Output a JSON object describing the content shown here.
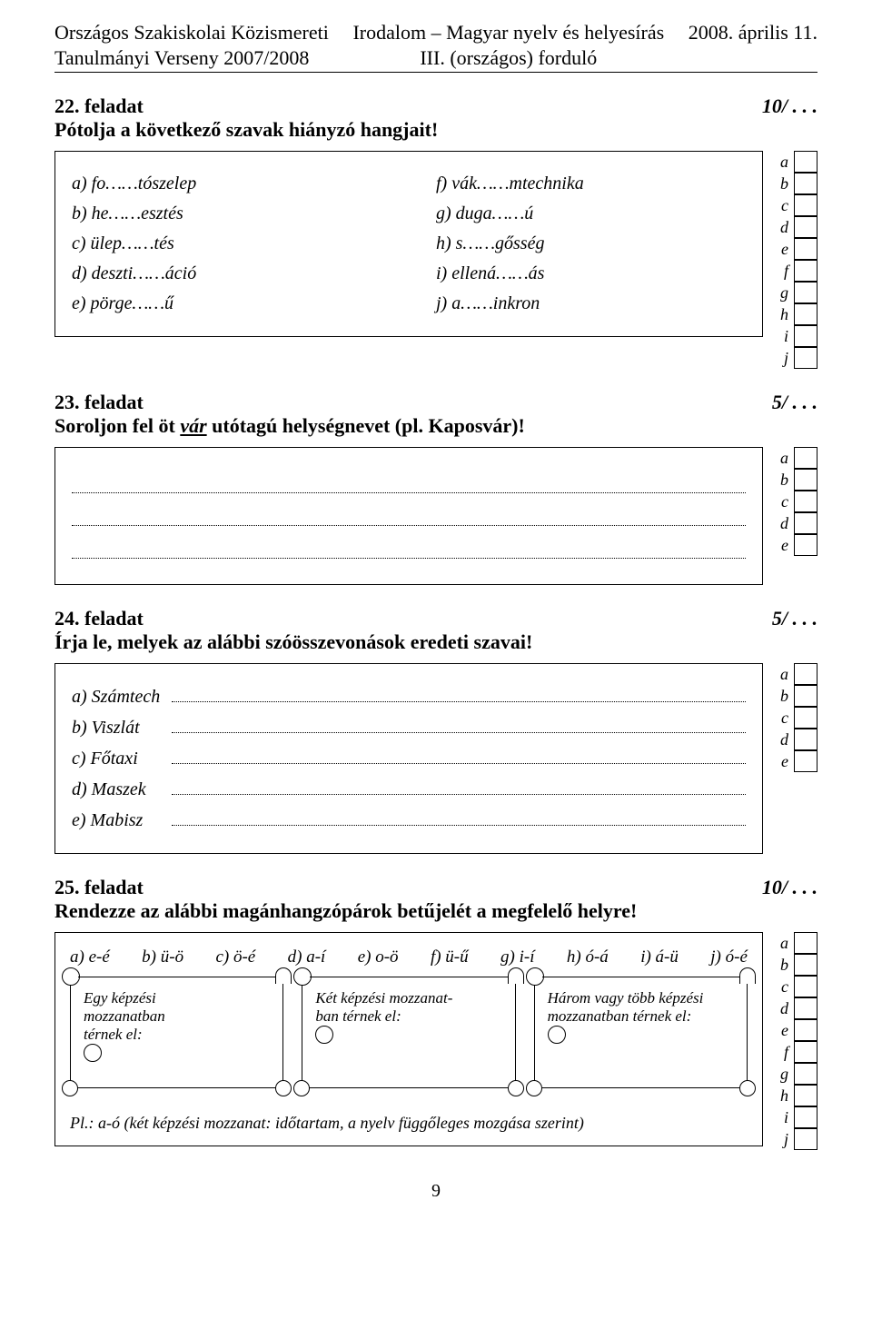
{
  "header": {
    "left_line1": "Országos Szakiskolai Közismereti",
    "left_line2": "Tanulmányi Verseny 2007/2008",
    "center_line1": "Irodalom – Magyar nyelv és helyesírás",
    "center_line2": "III. (országos) forduló",
    "right_line1": "",
    "right_line2": "2008. április 11."
  },
  "task22": {
    "title": "22. feladat",
    "score": "10/ . . .",
    "desc": "Pótolja a következő szavak hiányzó hangjait!",
    "left_items": {
      "a": "a) fo……tószelep",
      "b": "b) he……esztés",
      "c": "c) ülep……tés",
      "d": "d) deszti……áció",
      "e": "e) pörge……ű"
    },
    "right_items": {
      "f": "f) vák……mtechnika",
      "g": "g) duga……ú",
      "h": "h) s……gősség",
      "i": "i) ellená……ás",
      "j": "j) a……inkron"
    },
    "grid_labels": [
      "a",
      "b",
      "c",
      "d",
      "e",
      "f",
      "g",
      "h",
      "i",
      "j"
    ]
  },
  "task23": {
    "title": "23. feladat",
    "score": "5/ . . .",
    "desc_pre": "Soroljon fel öt ",
    "desc_u": "vár",
    "desc_post": " utótagú helységnevet (pl. Kaposvár)!",
    "grid_labels": [
      "a",
      "b",
      "c",
      "d",
      "e"
    ]
  },
  "task24": {
    "title": "24. feladat",
    "score": "5/ . . .",
    "desc": "Írja le, melyek az alábbi szóösszevonások eredeti szavai!",
    "rows": [
      {
        "label": "a) Számtech"
      },
      {
        "label": "b) Viszlát"
      },
      {
        "label": "c) Főtaxi"
      },
      {
        "label": "d) Maszek"
      },
      {
        "label": "e) Mabisz"
      }
    ],
    "grid_labels": [
      "a",
      "b",
      "c",
      "d",
      "e"
    ]
  },
  "task25": {
    "title": "25. feladat",
    "score": "10/ . . .",
    "desc": "Rendezze az alábbi magánhangzópárok betűjelét a megfelelő helyre!",
    "pairs": [
      "a) e-é",
      "b) ü-ö",
      "c) ö-é",
      "d) a-í",
      "e) o-ö",
      "f) ü-ű",
      "g) i-í",
      "h) ó-á",
      "i) á-ü",
      "j) ó-é"
    ],
    "scrolls": [
      {
        "line1": "Egy képzési",
        "line2": "mozzanatban",
        "line3": "térnek el:"
      },
      {
        "line1": "Két képzési mozzanat-",
        "line2": "ban térnek el:",
        "line3": ""
      },
      {
        "line1": "Három vagy több képzési",
        "line2": "mozzanatban térnek el:",
        "line3": ""
      }
    ],
    "example": "Pl.: a-ó (két képzési mozzanat: időtartam, a nyelv függőleges mozgása szerint)",
    "grid_labels": [
      "a",
      "b",
      "c",
      "d",
      "e",
      "f",
      "g",
      "h",
      "i",
      "j"
    ]
  },
  "page_number": "9"
}
